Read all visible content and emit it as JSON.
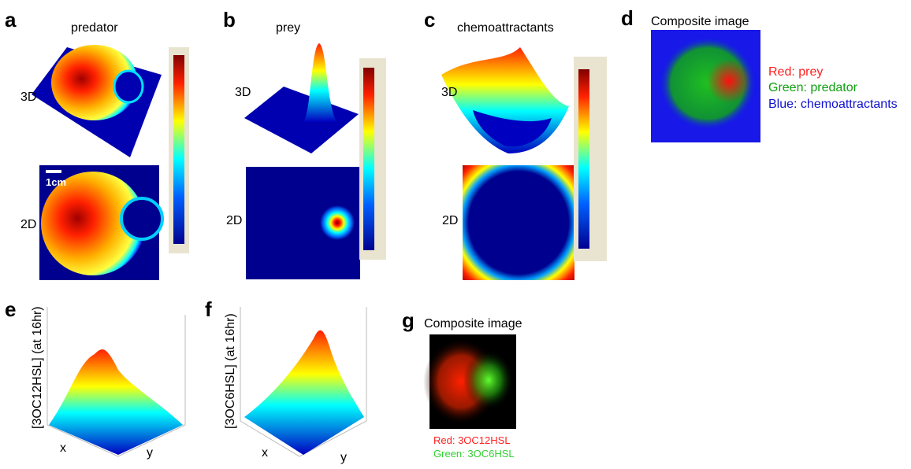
{
  "panel_a": {
    "letter": "a",
    "title": "predator",
    "label_3d": "3D",
    "label_2d": "2D",
    "scale_bar": "1cm"
  },
  "panel_b": {
    "letter": "b",
    "title": "prey",
    "label_3d": "3D",
    "label_2d": "2D"
  },
  "panel_c": {
    "letter": "c",
    "title": "chemoattractants",
    "label_3d": "3D",
    "label_2d": "2D"
  },
  "panel_d": {
    "letter": "d",
    "title": "Composite image",
    "legend": [
      "Red: prey",
      "Green: predator",
      "Blue: chemoattractants"
    ]
  },
  "panel_e": {
    "letter": "e",
    "z_label": "[3OC12HSL] (at 16hr)",
    "x_label": "x",
    "y_label": "y"
  },
  "panel_f": {
    "letter": "f",
    "z_label": "[3OC6HSL] (at 16hr)",
    "x_label": "x",
    "y_label": "y"
  },
  "panel_g": {
    "letter": "g",
    "title": "Composite image",
    "legend": [
      "Red: 3OC12HSL",
      "Green: 3OC6HSL"
    ]
  }
}
